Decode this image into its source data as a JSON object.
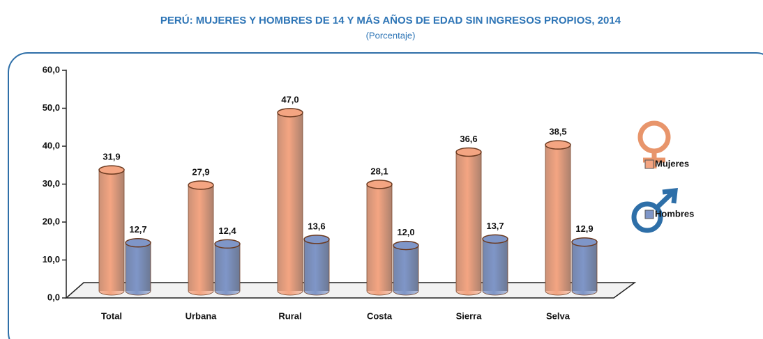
{
  "chart_data": {
    "type": "bar",
    "title": "PERÚ: MUJERES Y HOMBRES DE 14 Y MÁS AÑOS DE EDAD SIN INGRESOS PROPIOS, 2014",
    "subtitle": "(Porcentaje)",
    "categories": [
      "Total",
      "Urbana",
      "Rural",
      "Costa",
      "Sierra",
      "Selva"
    ],
    "series": [
      {
        "name": "Mujeres",
        "color": "#f4a582",
        "values": [
          31.9,
          27.9,
          47.0,
          28.1,
          36.6,
          38.5
        ],
        "value_labels": [
          "31,9",
          "27,9",
          "47,0",
          "28,1",
          "36,6",
          "38,5"
        ]
      },
      {
        "name": "Hombres",
        "color": "#7f96c8",
        "values": [
          12.7,
          12.4,
          13.6,
          12.0,
          13.7,
          12.9
        ],
        "value_labels": [
          "12,7",
          "12,4",
          "13,6",
          "12,0",
          "13,7",
          "12,9"
        ]
      }
    ],
    "ylim": [
      0,
      60
    ],
    "yticks": [
      {
        "value": 0,
        "label": "0,0"
      },
      {
        "value": 10,
        "label": "10,0"
      },
      {
        "value": 20,
        "label": "20,0"
      },
      {
        "value": 30,
        "label": "30,0"
      },
      {
        "value": 40,
        "label": "40,0"
      },
      {
        "value": 50,
        "label": "50,0"
      },
      {
        "value": 60,
        "label": "60,0"
      }
    ],
    "legend": "right"
  }
}
